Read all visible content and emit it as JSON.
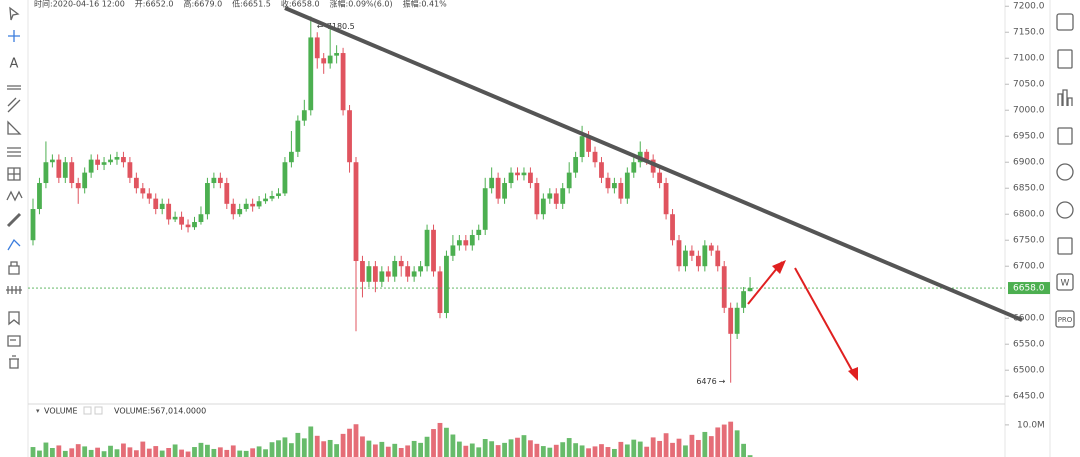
{
  "header": [
    "时间:2020-04-16 12:00",
    "开:6652.0",
    "高:6679.0",
    "低:6651.5",
    "收:6658.0",
    "涨幅:0.09%(6.0)",
    "振幅:0.41%"
  ],
  "left_toolbar": {
    "text_tool": "A"
  },
  "right_toolbar": {
    "pro": "PRO",
    "w": "W"
  },
  "chart_data": [
    {
      "type": "candlestick",
      "up_color": "#4caf50",
      "down_color": "#e0545f",
      "open": [
        6750,
        6810,
        6860,
        6900,
        6905,
        6870,
        6900,
        6860,
        6850,
        6880,
        6905,
        6895,
        6900,
        6905,
        6910,
        6900,
        6870,
        6850,
        6840,
        6830,
        6810,
        6820,
        6790,
        6795,
        6780,
        6775,
        6785,
        6800,
        6860,
        6870,
        6860,
        6820,
        6800,
        6810,
        6820,
        6815,
        6825,
        6830,
        6835,
        6840,
        6900,
        6920,
        6980,
        7000,
        7140,
        7100,
        7090,
        7105,
        7110,
        7000,
        6900,
        6710,
        6670,
        6700,
        6670,
        6690,
        6680,
        6710,
        6700,
        6680,
        6690,
        6700,
        6770,
        6690,
        6610,
        6720,
        6740,
        6750,
        6740,
        6760,
        6770,
        6850,
        6870,
        6830,
        6860,
        6880,
        6875,
        6880,
        6860,
        6800,
        6830,
        6840,
        6820,
        6850,
        6880,
        6910,
        6950,
        6920,
        6900,
        6870,
        6850,
        6860,
        6830,
        6880,
        6900,
        6920,
        6905,
        6880,
        6860,
        6800,
        6750,
        6700,
        6730,
        6720,
        6700,
        6740,
        6730,
        6700,
        6620,
        6570,
        6620,
        6652
      ],
      "high": [
        6830,
        6870,
        6940,
        6915,
        6915,
        6910,
        6910,
        6870,
        6890,
        6915,
        6915,
        6910,
        6915,
        6920,
        6920,
        6910,
        6880,
        6860,
        6850,
        6840,
        6830,
        6830,
        6805,
        6805,
        6790,
        6795,
        6815,
        6870,
        6880,
        6880,
        6870,
        6830,
        6820,
        6830,
        6830,
        6835,
        6840,
        6845,
        6850,
        6910,
        6960,
        6990,
        7020,
        7180.5,
        7150,
        7110,
        7160,
        7125,
        7120,
        7010,
        6910,
        6720,
        6710,
        6710,
        6700,
        6700,
        6720,
        6720,
        6710,
        6700,
        6710,
        6780,
        6780,
        6700,
        6730,
        6760,
        6760,
        6760,
        6770,
        6780,
        6870,
        6890,
        6880,
        6870,
        6890,
        6890,
        6890,
        6890,
        6870,
        6840,
        6850,
        6850,
        6860,
        6900,
        6920,
        6970,
        6960,
        6930,
        6910,
        6880,
        6870,
        6870,
        6890,
        6910,
        6940,
        6925,
        6915,
        6890,
        6870,
        6810,
        6760,
        6740,
        6740,
        6730,
        6750,
        6745,
        6740,
        6710,
        6630,
        6630,
        6660,
        6679
      ],
      "low": [
        6740,
        6800,
        6850,
        6890,
        6860,
        6860,
        6850,
        6820,
        6840,
        6870,
        6885,
        6885,
        6895,
        6895,
        6890,
        6860,
        6840,
        6830,
        6820,
        6800,
        6800,
        6780,
        6785,
        6770,
        6765,
        6770,
        6780,
        6790,
        6850,
        6850,
        6810,
        6790,
        6795,
        6805,
        6805,
        6810,
        6820,
        6825,
        6830,
        6835,
        6890,
        6910,
        6970,
        6990,
        7080,
        7070,
        7080,
        7090,
        6990,
        6880,
        6575,
        6640,
        6660,
        6650,
        6660,
        6670,
        6670,
        6680,
        6670,
        6670,
        6680,
        6690,
        6680,
        6600,
        6600,
        6710,
        6730,
        6730,
        6730,
        6750,
        6760,
        6840,
        6820,
        6820,
        6850,
        6865,
        6865,
        6850,
        6790,
        6790,
        6820,
        6810,
        6810,
        6840,
        6870,
        6900,
        6910,
        6890,
        6860,
        6840,
        6840,
        6820,
        6820,
        6870,
        6890,
        6895,
        6870,
        6850,
        6790,
        6740,
        6690,
        6690,
        6710,
        6690,
        6690,
        6720,
        6690,
        6610,
        6476,
        6560,
        6610,
        6651.5
      ],
      "close": [
        6810,
        6860,
        6900,
        6905,
        6870,
        6900,
        6860,
        6850,
        6880,
        6905,
        6895,
        6900,
        6905,
        6910,
        6900,
        6870,
        6850,
        6840,
        6830,
        6810,
        6820,
        6790,
        6795,
        6780,
        6775,
        6785,
        6800,
        6860,
        6870,
        6860,
        6820,
        6800,
        6810,
        6820,
        6815,
        6825,
        6830,
        6835,
        6840,
        6900,
        6920,
        6980,
        7000,
        7140,
        7100,
        7090,
        7105,
        7110,
        7000,
        6900,
        6710,
        6670,
        6700,
        6670,
        6690,
        6680,
        6710,
        6700,
        6680,
        6690,
        6700,
        6770,
        6690,
        6610,
        6720,
        6740,
        6750,
        6740,
        6760,
        6770,
        6850,
        6870,
        6830,
        6860,
        6880,
        6875,
        6880,
        6860,
        6800,
        6830,
        6840,
        6820,
        6850,
        6880,
        6910,
        6950,
        6920,
        6900,
        6870,
        6850,
        6860,
        6830,
        6880,
        6900,
        6920,
        6905,
        6880,
        6860,
        6800,
        6750,
        6700,
        6730,
        6720,
        6700,
        6740,
        6730,
        6700,
        6620,
        6570,
        6620,
        6652,
        6658
      ],
      "ylim": [
        6435,
        7212
      ],
      "yticks": [
        {
          "value": 7200,
          "label": "7200.0"
        },
        {
          "value": 7150,
          "label": "7150.0"
        },
        {
          "value": 7100,
          "label": "7100.0"
        },
        {
          "value": 7050,
          "label": "7050.0"
        },
        {
          "value": 7000,
          "label": "7000.0"
        },
        {
          "value": 6950,
          "label": "6950.0"
        },
        {
          "value": 6900,
          "label": "6900.0"
        },
        {
          "value": 6850,
          "label": "6850.0"
        },
        {
          "value": 6800,
          "label": "6800.0"
        },
        {
          "value": 6750,
          "label": "6750.0"
        },
        {
          "value": 6700,
          "label": "6700.0"
        },
        {
          "value": 6600,
          "label": "6600.0"
        },
        {
          "value": 6550,
          "label": "6550.0"
        },
        {
          "value": 6500,
          "label": "6500.0"
        },
        {
          "value": 6450,
          "label": "6450.0"
        }
      ],
      "last_price": {
        "value": 6658,
        "label": "6658.0"
      },
      "last_color": "#4caf50",
      "max_index": 43,
      "min_index": 108
    },
    {
      "type": "bar",
      "title": "VOLUME",
      "legend": "VOLUME:567,014.0000",
      "values": [
        3100000,
        2000000,
        4500000,
        2800000,
        3600000,
        1900000,
        2700000,
        4000000,
        3300000,
        2200000,
        2900000,
        1800000,
        3500000,
        2400000,
        4200000,
        3000000,
        2100000,
        4800000,
        2600000,
        3400000,
        2000000,
        2800000,
        3900000,
        2300000,
        1700000,
        3100000,
        4400000,
        3800000,
        2500000,
        3000000,
        2200000,
        3600000,
        2000000,
        1900000,
        2700000,
        3300000,
        2400000,
        4600000,
        5200000,
        6100000,
        4300000,
        7500000,
        5800000,
        9500000,
        6600000,
        4900000,
        5300000,
        4000000,
        7200000,
        8800000,
        10200000,
        6400000,
        5100000,
        3900000,
        4700000,
        3200000,
        4100000,
        2800000,
        3600000,
        5000000,
        4400000,
        6300000,
        8700000,
        10600000,
        9100000,
        7000000,
        4800000,
        3500000,
        4200000,
        3000000,
        5600000,
        4900000,
        3700000,
        4400000,
        5500000,
        6000000,
        6800000,
        5200000,
        4100000,
        3400000,
        2900000,
        3800000,
        4600000,
        5900000,
        4300000,
        3600000,
        2700000,
        3300000,
        4000000,
        3100000,
        2500000,
        4700000,
        3900000,
        5400000,
        4800000,
        3200000,
        6100000,
        5000000,
        7400000,
        4400000,
        5700000,
        3600000,
        6900000,
        5300000,
        7800000,
        6500000,
        9200000,
        10100000,
        11000000,
        8300000,
        4100000,
        567014
      ],
      "ylim": [
        0,
        16500000
      ],
      "yticks": [
        {
          "value": 10000000,
          "label": "10.0M"
        }
      ]
    }
  ]
}
